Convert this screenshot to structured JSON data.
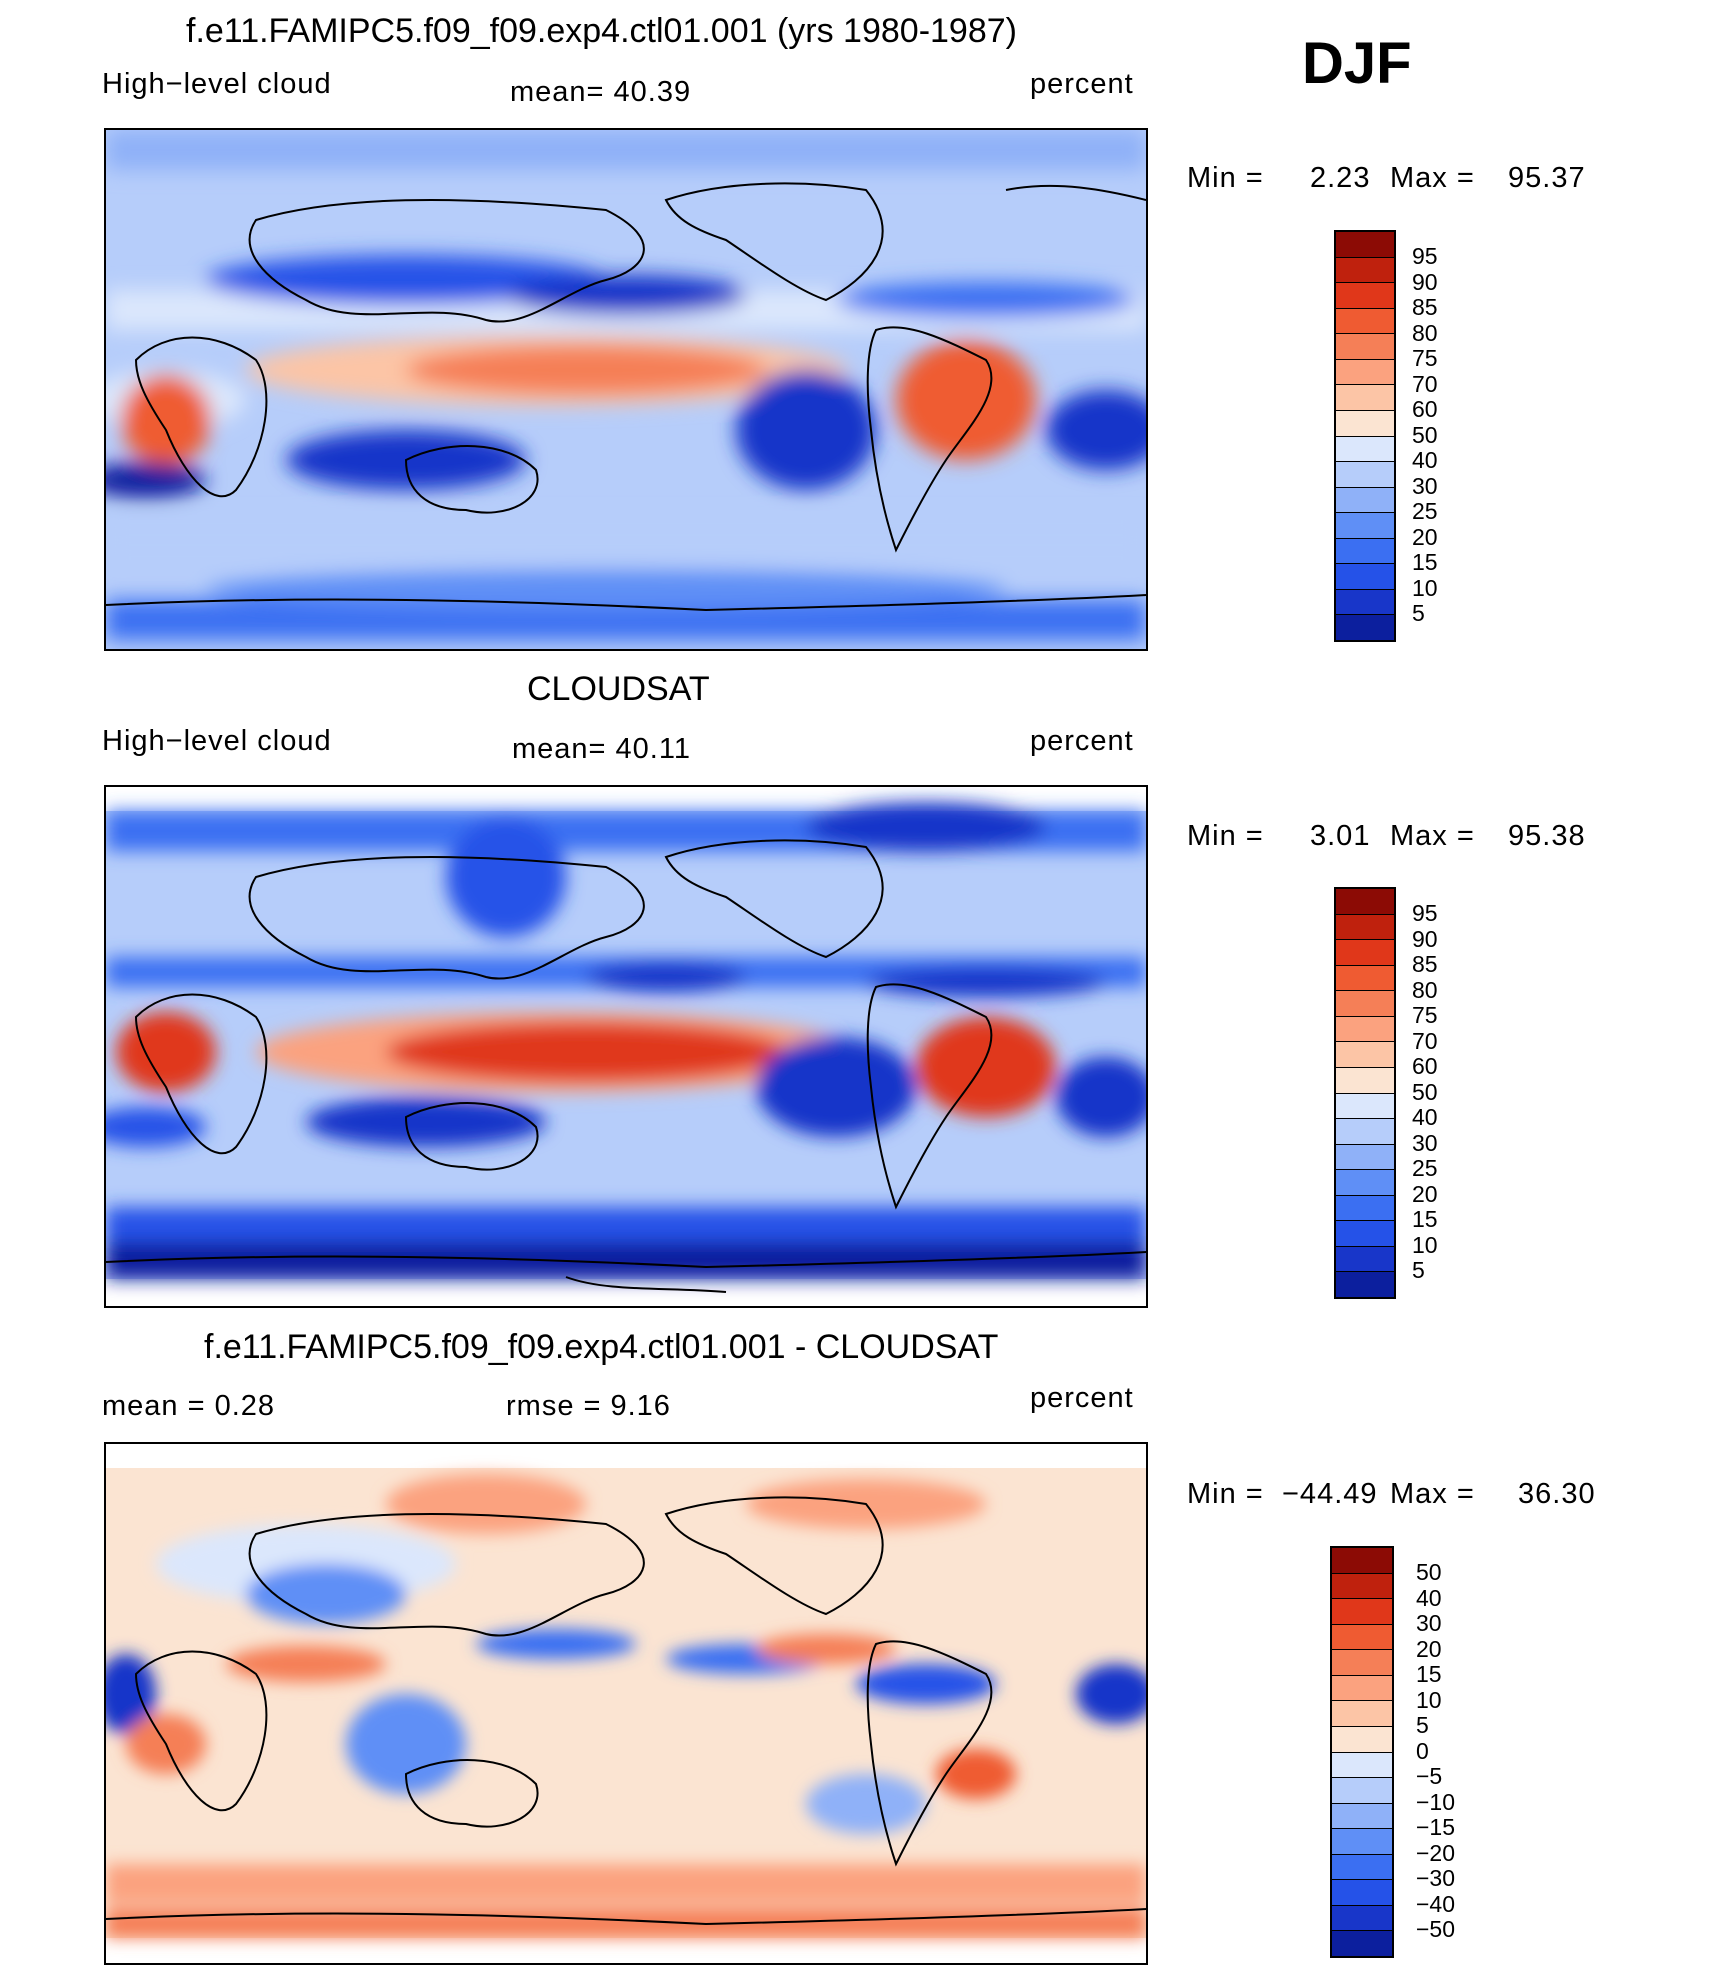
{
  "season": "DJF",
  "colors": {
    "diverging": [
      "#08085e",
      "#0c1f9e",
      "#1836c9",
      "#2552e8",
      "#3b6ff2",
      "#5f8ff6",
      "#8fb1f8",
      "#b6cdfa",
      "#dbe7fc",
      "#fbe4d2",
      "#fcc5a6",
      "#fba27f",
      "#f57f57",
      "#ef5b32",
      "#e0371a",
      "#bf210d",
      "#8c0b05"
    ]
  },
  "panels": [
    {
      "title": "f.e11.FAMIPC5.f09_f09.exp4.ctl01.001 (yrs 1980-1987)",
      "left_label": "High−level cloud",
      "mid_label": "mean=   40.39",
      "right_label": "percent",
      "min_label": "Min  =",
      "min_value": "2.23",
      "max_label": "Max  =",
      "max_value": "95.37",
      "colorbar_levels": [
        "95",
        "90",
        "85",
        "80",
        "75",
        "70",
        "60",
        "50",
        "40",
        "30",
        "25",
        "20",
        "15",
        "10",
        "5"
      ]
    },
    {
      "title": "CLOUDSAT",
      "left_label": "High−level cloud",
      "mid_label": "mean=   40.11",
      "right_label": "percent",
      "min_label": "Min  =",
      "min_value": "3.01",
      "max_label": "Max  =",
      "max_value": "95.38",
      "colorbar_levels": [
        "95",
        "90",
        "85",
        "80",
        "75",
        "70",
        "60",
        "50",
        "40",
        "30",
        "25",
        "20",
        "15",
        "10",
        "5"
      ]
    },
    {
      "title": "f.e11.FAMIPC5.f09_f09.exp4.ctl01.001 - CLOUDSAT",
      "left_label": "mean  =     0.28",
      "mid_label": "rmse  =      9.16",
      "right_label": "percent",
      "min_label": "Min  =",
      "min_value": "−44.49",
      "max_label": "Max  =",
      "max_value": "36.30",
      "colorbar_levels": [
        "50",
        "40",
        "30",
        "20",
        "15",
        "10",
        "5",
        "0",
        "−5",
        "−10",
        "−15",
        "−20",
        "−30",
        "−40",
        "−50"
      ]
    }
  ]
}
